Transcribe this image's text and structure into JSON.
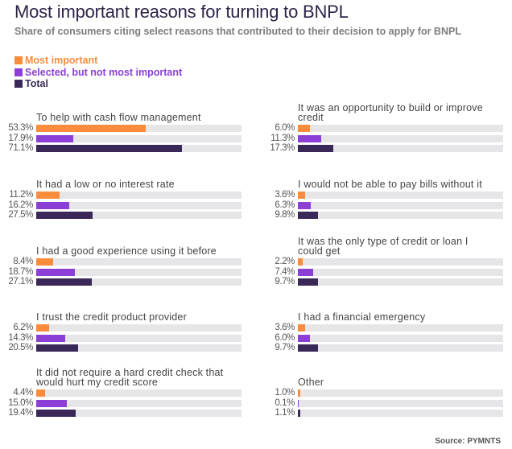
{
  "chart_data": {
    "type": "bar",
    "orientation": "horizontal",
    "title": "Most important reasons for turning to BNPL",
    "subtitle": "Share of consumers citing select reasons that contributed to their decision to apply for BNPL",
    "unit": "%",
    "xlim": [
      0,
      100
    ],
    "legend_placement": "top-left",
    "series": [
      {
        "name": "Most important",
        "color": "#fb8c3c"
      },
      {
        "name": "Selected, but not most important",
        "color": "#8b3fd6"
      },
      {
        "name": "Total",
        "color": "#3a2858"
      }
    ],
    "track_color": "#e6e6e8",
    "categories": [
      {
        "label": [
          "To help with cash flow management"
        ],
        "values": [
          53.3,
          17.9,
          71.1
        ],
        "labels": [
          "53.3%",
          "17.9%",
          "71.1%"
        ]
      },
      {
        "label": [
          "It had a low or no interest rate"
        ],
        "values": [
          11.2,
          16.2,
          27.5
        ],
        "labels": [
          "11.2%",
          "16.2%",
          "27.5%"
        ]
      },
      {
        "label": [
          "I had a good experience using it before"
        ],
        "values": [
          8.4,
          18.7,
          27.1
        ],
        "labels": [
          "8.4%",
          "18.7%",
          "27.1%"
        ]
      },
      {
        "label": [
          "I trust the credit product provider"
        ],
        "values": [
          6.2,
          14.3,
          20.5
        ],
        "labels": [
          "6.2%",
          "14.3%",
          "20.5%"
        ]
      },
      {
        "label": [
          "It did not require a hard credit check that",
          "would hurt my credit score"
        ],
        "values": [
          4.4,
          15.0,
          19.4
        ],
        "labels": [
          "4.4%",
          "15.0%",
          "19.4%"
        ]
      },
      {
        "label": [
          "It was an opportunity to build or improve",
          "credit"
        ],
        "values": [
          6.0,
          11.3,
          17.3
        ],
        "labels": [
          "6.0%",
          "11.3%",
          "17.3%"
        ]
      },
      {
        "label": [
          "I would not be able to pay bills without it"
        ],
        "values": [
          3.6,
          6.3,
          9.8
        ],
        "labels": [
          "3.6%",
          "6.3%",
          "9.8%"
        ]
      },
      {
        "label": [
          "It was the only type of credit or loan I",
          "could get"
        ],
        "values": [
          2.2,
          7.4,
          9.7
        ],
        "labels": [
          "2.2%",
          "7.4%",
          "9.7%"
        ]
      },
      {
        "label": [
          "I had a financial emergency"
        ],
        "values": [
          3.6,
          6.0,
          9.7
        ],
        "labels": [
          "3.6%",
          "6.0%",
          "9.7%"
        ]
      },
      {
        "label": [
          "Other"
        ],
        "values": [
          1.0,
          0.1,
          1.1
        ],
        "labels": [
          "1.0%",
          "0.1%",
          "1.1%"
        ]
      }
    ],
    "source": "Source: PYMNTS"
  }
}
